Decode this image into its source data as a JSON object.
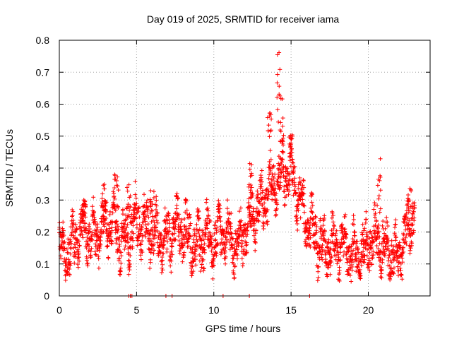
{
  "chart_data": {
    "type": "scatter",
    "title": "Day 019 of 2025, SRMTID for receiver iama",
    "xlabel": "GPS time / hours",
    "ylabel": "SRMTID / TECUs",
    "xlim": [
      0,
      24
    ],
    "ylim": [
      0,
      0.8
    ],
    "xticks": [
      0,
      5,
      10,
      15,
      20
    ],
    "xtick_labels": [
      "0",
      "5",
      "10",
      "15",
      "20"
    ],
    "yticks": [
      0,
      0.1,
      0.2,
      0.3,
      0.4,
      0.5,
      0.6,
      0.7,
      0.8
    ],
    "ytick_labels": [
      "0",
      "0.1",
      "0.2",
      "0.3",
      "0.4",
      "0.5",
      "0.6",
      "0.7",
      "0.8"
    ],
    "grid": true,
    "marker": "+",
    "color": "#ff0000",
    "series": [
      {
        "name": "SRMTID",
        "trend_points": [
          [
            0.0,
            0.14
          ],
          [
            0.5,
            0.13
          ],
          [
            1.0,
            0.17
          ],
          [
            1.5,
            0.21
          ],
          [
            2.0,
            0.19
          ],
          [
            2.5,
            0.19
          ],
          [
            3.0,
            0.22
          ],
          [
            3.5,
            0.24
          ],
          [
            4.0,
            0.17
          ],
          [
            4.5,
            0.19
          ],
          [
            5.0,
            0.24
          ],
          [
            5.5,
            0.22
          ],
          [
            6.0,
            0.2
          ],
          [
            6.5,
            0.18
          ],
          [
            7.0,
            0.17
          ],
          [
            7.5,
            0.22
          ],
          [
            8.0,
            0.21
          ],
          [
            8.5,
            0.17
          ],
          [
            9.0,
            0.15
          ],
          [
            9.5,
            0.19
          ],
          [
            10.0,
            0.17
          ],
          [
            10.5,
            0.2
          ],
          [
            11.0,
            0.19
          ],
          [
            11.5,
            0.16
          ],
          [
            12.0,
            0.2
          ],
          [
            12.5,
            0.26
          ],
          [
            13.0,
            0.28
          ],
          [
            13.5,
            0.33
          ],
          [
            14.0,
            0.36
          ],
          [
            14.5,
            0.38
          ],
          [
            15.0,
            0.39
          ],
          [
            15.5,
            0.3
          ],
          [
            16.0,
            0.23
          ],
          [
            16.5,
            0.19
          ],
          [
            17.0,
            0.15
          ],
          [
            17.5,
            0.16
          ],
          [
            18.0,
            0.15
          ],
          [
            18.5,
            0.15
          ],
          [
            19.0,
            0.13
          ],
          [
            19.5,
            0.12
          ],
          [
            20.0,
            0.17
          ],
          [
            20.5,
            0.18
          ],
          [
            21.0,
            0.15
          ],
          [
            21.5,
            0.13
          ],
          [
            22.0,
            0.12
          ],
          [
            22.5,
            0.2
          ],
          [
            23.0,
            0.27
          ]
        ],
        "peaks": [
          [
            3.7,
            0.4
          ],
          [
            2.9,
            0.35
          ],
          [
            4.5,
            0.35
          ],
          [
            12.4,
            0.42
          ],
          [
            13.6,
            0.61
          ],
          [
            14.2,
            0.77
          ],
          [
            14.4,
            0.64
          ],
          [
            15.0,
            0.52
          ],
          [
            20.7,
            0.43
          ],
          [
            22.7,
            0.34
          ],
          [
            1.6,
            0.32
          ],
          [
            6.0,
            0.34
          ]
        ],
        "zero_points": [
          4.5,
          4.6,
          4.7,
          6.9,
          7.3,
          10.6,
          12.3,
          16.2
        ]
      }
    ]
  }
}
